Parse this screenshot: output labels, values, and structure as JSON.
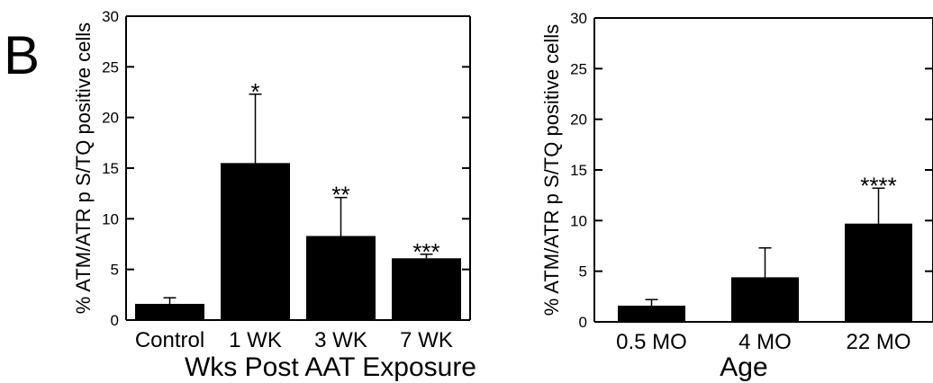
{
  "panel_label": "B",
  "chart_data": [
    {
      "type": "bar",
      "categories": [
        "Control",
        "1 WK",
        "3 WK",
        "7 WK"
      ],
      "values": [
        1.6,
        15.5,
        8.3,
        6.1
      ],
      "errors": [
        0.6,
        6.8,
        3.8,
        0.4
      ],
      "annotations": [
        "",
        "*",
        "**",
        "***"
      ],
      "xlabel": "Wks Post AAT Exposure",
      "ylabel": "% ATM/ATR p S/TQ positive cells",
      "ylim": [
        0,
        30
      ],
      "yticks": [
        0,
        5,
        10,
        15,
        20,
        25,
        30
      ],
      "bar_color": "#000000"
    },
    {
      "type": "bar",
      "categories": [
        "0.5 MO",
        "4 MO",
        "22 MO"
      ],
      "values": [
        1.6,
        4.4,
        9.7
      ],
      "errors": [
        0.6,
        2.9,
        3.5
      ],
      "annotations": [
        "",
        "",
        "****"
      ],
      "xlabel": "Age",
      "ylabel": "% ATM/ATR p S/TQ positive cells",
      "ylim": [
        0,
        30
      ],
      "yticks": [
        0,
        5,
        10,
        15,
        20,
        25,
        30
      ],
      "bar_color": "#000000"
    }
  ]
}
